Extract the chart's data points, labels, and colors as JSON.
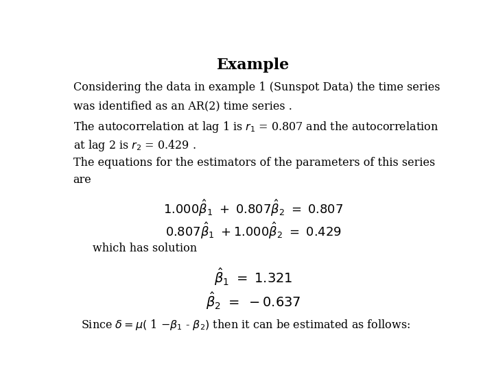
{
  "title": "Example",
  "background_color": "#ffffff",
  "text_color": "#000000",
  "title_fontsize": 16,
  "body_fontsize": 11.5,
  "math_fontsize": 13,
  "line1": "Considering the data in example 1 (Sunspot Data) the time series",
  "line2": "was identified as an AR(2) time series .",
  "line3a": "The autocorrelation at lag 1 is ",
  "line3b": " = 0.807 and the autocorrelation",
  "line4a": "at lag 2 is ",
  "line4b": " = 0.429 .",
  "line5": "The equations for the estimators of the parameters of this series",
  "line6": "are",
  "eq1": "$1.000\\hat{\\beta}_1 + 0.807\\hat{\\beta}_2 \\ = \\ 0.807$",
  "eq2": "$0.807\\hat{\\beta}_1 +1.000\\hat{\\beta}_2 \\ = \\ 0.429$",
  "whs": "which has solution",
  "sol1": "$\\hat{\\beta}_1 \\ = \\ 1.321$",
  "sol2": "$\\hat{\\beta}_2 \\ = \\ -0.637$",
  "since": "Since $\\delta= \\mu($ 1 $-\\beta_1$ - $\\beta_2)$ then it can be estimated as follows:"
}
